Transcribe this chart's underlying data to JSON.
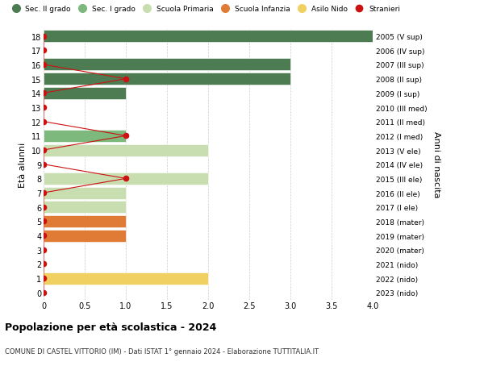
{
  "ages": [
    0,
    1,
    2,
    3,
    4,
    5,
    6,
    7,
    8,
    9,
    10,
    11,
    12,
    13,
    14,
    15,
    16,
    17,
    18
  ],
  "right_labels": [
    "2023 (nido)",
    "2022 (nido)",
    "2021 (nido)",
    "2020 (mater)",
    "2019 (mater)",
    "2018 (mater)",
    "2017 (I ele)",
    "2016 (II ele)",
    "2015 (III ele)",
    "2014 (IV ele)",
    "2013 (V ele)",
    "2012 (I med)",
    "2011 (II med)",
    "2010 (III med)",
    "2009 (I sup)",
    "2008 (II sup)",
    "2007 (III sup)",
    "2006 (IV sup)",
    "2005 (V sup)"
  ],
  "bars": [
    {
      "age": 18,
      "value": 4.0,
      "color": "#4d7c52"
    },
    {
      "age": 17,
      "value": 0,
      "color": "#4d7c52"
    },
    {
      "age": 16,
      "value": 3.0,
      "color": "#4d7c52"
    },
    {
      "age": 15,
      "value": 3.0,
      "color": "#4d7c52"
    },
    {
      "age": 14,
      "value": 1.0,
      "color": "#4d7c52"
    },
    {
      "age": 13,
      "value": 0,
      "color": "#4d7c52"
    },
    {
      "age": 12,
      "value": 0,
      "color": "#7db87d"
    },
    {
      "age": 11,
      "value": 1.0,
      "color": "#7db87d"
    },
    {
      "age": 10,
      "value": 2.0,
      "color": "#c8ddb0"
    },
    {
      "age": 9,
      "value": 0,
      "color": "#c8ddb0"
    },
    {
      "age": 8,
      "value": 2.0,
      "color": "#c8ddb0"
    },
    {
      "age": 7,
      "value": 1.0,
      "color": "#c8ddb0"
    },
    {
      "age": 6,
      "value": 1.0,
      "color": "#c8ddb0"
    },
    {
      "age": 5,
      "value": 1.0,
      "color": "#e07b35"
    },
    {
      "age": 4,
      "value": 1.0,
      "color": "#e07b35"
    },
    {
      "age": 3,
      "value": 0,
      "color": "#e07b35"
    },
    {
      "age": 2,
      "value": 0,
      "color": "#f0d060"
    },
    {
      "age": 1,
      "value": 2.0,
      "color": "#f0d060"
    },
    {
      "age": 0,
      "value": 0,
      "color": "#f0d060"
    }
  ],
  "stranieri": [
    {
      "age": 18,
      "value": 0
    },
    {
      "age": 17,
      "value": 0
    },
    {
      "age": 16,
      "value": 0
    },
    {
      "age": 15,
      "value": 1.0
    },
    {
      "age": 14,
      "value": 0
    },
    {
      "age": 13,
      "value": 0
    },
    {
      "age": 12,
      "value": 0
    },
    {
      "age": 11,
      "value": 1.0
    },
    {
      "age": 10,
      "value": 0
    },
    {
      "age": 9,
      "value": 0
    },
    {
      "age": 8,
      "value": 1.0
    },
    {
      "age": 7,
      "value": 0
    },
    {
      "age": 6,
      "value": 0
    },
    {
      "age": 5,
      "value": 0
    },
    {
      "age": 4,
      "value": 0
    },
    {
      "age": 3,
      "value": 0
    },
    {
      "age": 2,
      "value": 0
    },
    {
      "age": 1,
      "value": 0
    },
    {
      "age": 0,
      "value": 0
    }
  ],
  "legend_items": [
    {
      "label": "Sec. II grado",
      "color": "#4d7c52"
    },
    {
      "label": "Sec. I grado",
      "color": "#7db87d"
    },
    {
      "label": "Scuola Primaria",
      "color": "#c8ddb0"
    },
    {
      "label": "Scuola Infanzia",
      "color": "#e07b35"
    },
    {
      "label": "Asilo Nido",
      "color": "#f0d060"
    },
    {
      "label": "Stranieri",
      "color": "#cc1111"
    }
  ],
  "ylabel_left": "Età alunni",
  "ylabel_right": "Anni di nascita",
  "title": "Popolazione per età scolastica - 2024",
  "subtitle": "COMUNE DI CASTEL VITTORIO (IM) - Dati ISTAT 1° gennaio 2024 - Elaborazione TUTTITALIA.IT",
  "xlim": [
    0,
    4.0
  ],
  "xticks": [
    0,
    0.5,
    1.0,
    1.5,
    2.0,
    2.5,
    3.0,
    3.5,
    4.0
  ],
  "xticklabels": [
    "0",
    "0.5",
    "1.0",
    "1.5",
    "2.0",
    "2.5",
    "3.0",
    "3.5",
    "4.0"
  ],
  "background_color": "#ffffff",
  "grid_color": "#cccccc",
  "bar_height": 0.85,
  "stranieri_color": "#cc1111",
  "stranieri_linewidth": 0.8,
  "stranieri_markersize": 4.5
}
